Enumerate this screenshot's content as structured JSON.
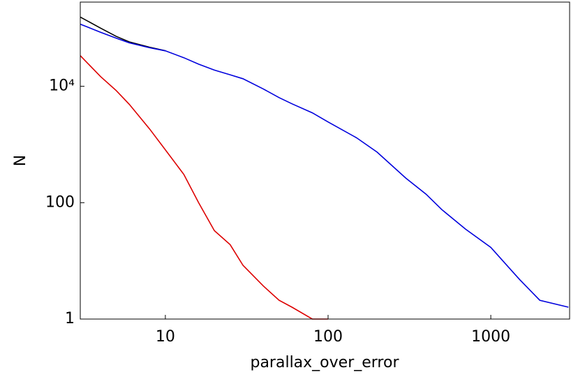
{
  "chart_data": {
    "type": "line",
    "xlabel": "parallax_over_error",
    "ylabel": "N",
    "xscale": "log",
    "yscale": "log",
    "xlim": [
      3,
      3050
    ],
    "ylim": [
      1,
      280000
    ],
    "xticks": [
      10,
      100,
      1000
    ],
    "yticks": [
      1,
      100,
      {
        "value": 10000,
        "label": "10⁴"
      }
    ],
    "x": [
      3,
      4,
      5,
      6,
      8,
      10,
      13,
      16,
      20,
      25,
      30,
      40,
      50,
      60,
      80,
      100,
      150,
      200,
      300,
      400,
      500,
      700,
      1000,
      1500,
      2000,
      3000
    ],
    "series": [
      {
        "color": "#000000",
        "values": [
          155000,
          100000,
          72000,
          58000,
          47000,
          40800,
          null,
          null,
          null,
          null,
          null,
          null,
          null,
          null,
          null,
          null,
          null,
          null,
          null,
          null,
          null,
          null,
          null,
          null,
          null,
          null
        ]
      },
      {
        "color": "#0000dd",
        "values": [
          117000,
          85000,
          67000,
          56000,
          46000,
          40700,
          31000,
          24000,
          19000,
          15800,
          13500,
          9000,
          6400,
          5000,
          3500,
          2440,
          1300,
          740,
          265,
          140,
          76,
          35,
          17,
          4.8,
          2.1,
          1.6
        ]
      },
      {
        "color": "#dd0000",
        "values": [
          33600,
          14700,
          8400,
          4900,
          1850,
          810,
          305,
          100,
          33,
          19,
          8.4,
          3.7,
          2.1,
          1.6,
          1,
          1,
          null,
          null,
          null,
          null,
          null,
          null,
          null,
          null,
          null,
          null
        ]
      }
    ]
  }
}
